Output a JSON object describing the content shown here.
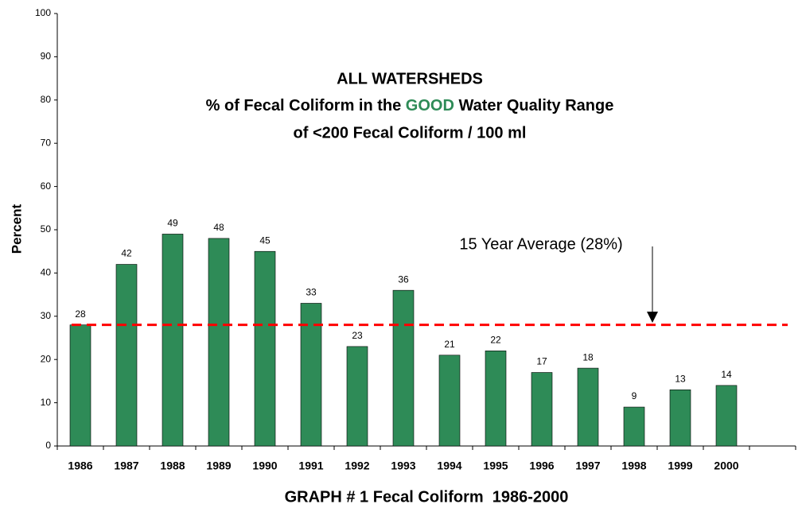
{
  "chart_data": {
    "type": "bar",
    "title": {
      "line1": "ALL WATERSHEDS",
      "line2_before": "% of Fecal Coliform in the ",
      "line2_highlight": "GOOD",
      "line2_after": " Water Quality Range",
      "line3": "of <200 Fecal Coliform / 100 ml"
    },
    "x_label": "GRAPH # 1 Fecal Coliform  1986-2000",
    "y_label": "Percent",
    "categories": [
      "1986",
      "1987",
      "1988",
      "1989",
      "1990",
      "1991",
      "1992",
      "1993",
      "1994",
      "1995",
      "1996",
      "1997",
      "1998",
      "1999",
      "2000",
      null
    ],
    "values": [
      28,
      42,
      49,
      48,
      45,
      33,
      23,
      36,
      21,
      22,
      17,
      18,
      9,
      13,
      14,
      null
    ],
    "color": "#2e8b57",
    "ylim": [
      0,
      100
    ],
    "yticks": [
      0,
      10,
      20,
      30,
      40,
      50,
      60,
      70,
      80,
      90,
      100
    ],
    "average": 28,
    "average_label": "15 Year Average (28%)",
    "average_color": "#ff0000",
    "highlight_color": "#2e8b57"
  }
}
